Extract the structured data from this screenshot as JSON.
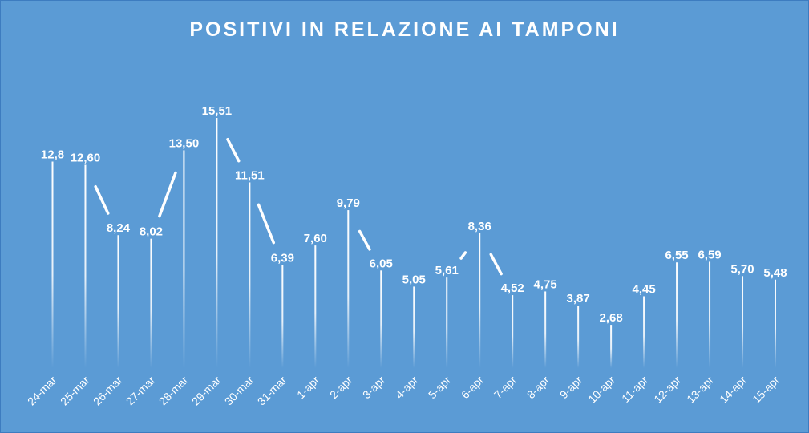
{
  "chart_data": {
    "type": "line",
    "title": "POSITIVI IN RELAZIONE AI TAMPONI",
    "xlabel": "",
    "ylabel": "",
    "ylim": [
      0,
      18
    ],
    "grid": false,
    "legend": "none",
    "categories": [
      "24-mar",
      "25-mar",
      "26-mar",
      "27-mar",
      "28-mar",
      "29-mar",
      "30-mar",
      "31-mar",
      "1-apr",
      "2-apr",
      "3-apr",
      "4-apr",
      "5-apr",
      "6-apr",
      "7-apr",
      "8-apr",
      "9-apr",
      "10-apr",
      "11-apr",
      "12-apr",
      "13-apr",
      "14-apr",
      "15-apr"
    ],
    "values": [
      12.8,
      12.6,
      8.24,
      8.02,
      13.5,
      15.51,
      11.51,
      6.39,
      7.6,
      9.79,
      6.05,
      5.05,
      5.61,
      8.36,
      4.52,
      4.75,
      3.87,
      2.68,
      4.45,
      6.55,
      6.59,
      5.7,
      5.48
    ],
    "data_labels": [
      "12,8",
      "12,60",
      "8,24",
      "8,02",
      "13,50",
      "15,51",
      "11,51",
      "6,39",
      "7,60",
      "9,79",
      "6,05",
      "5,05",
      "5,61",
      "8,36",
      "4,52",
      "4,75",
      "3,87",
      "2,68",
      "4,45",
      "6,55",
      "6,59",
      "5,70",
      "5,48"
    ]
  },
  "colors": {
    "background": "#5b9bd5",
    "line": "#ffffff",
    "text": "#ffffff"
  }
}
